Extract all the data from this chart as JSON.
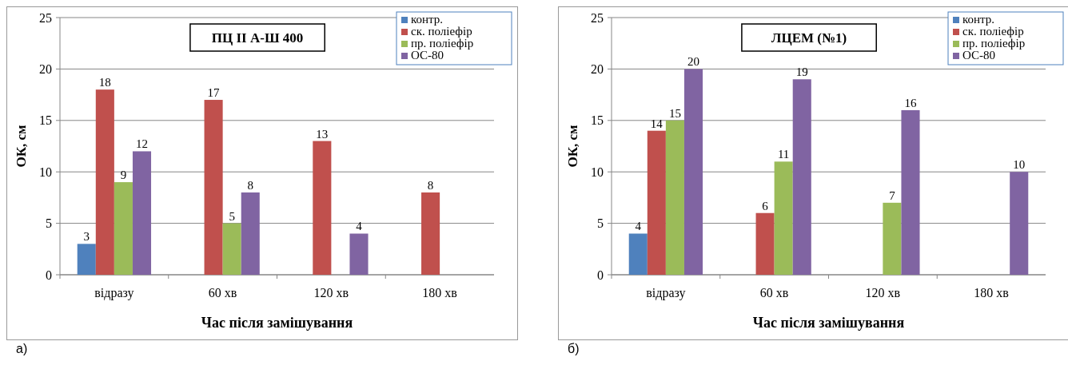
{
  "chart_data": [
    {
      "type": "bar",
      "title": "ПЦ II А-Ш 400",
      "xlabel": "Час після замішування",
      "ylabel": "ОК, см",
      "categories": [
        "відразу",
        "60 хв",
        "120 хв",
        "180 хв"
      ],
      "series": [
        {
          "name": "контр.",
          "color": "#4f81bd",
          "values": [
            3,
            null,
            null,
            null
          ]
        },
        {
          "name": "ск. поліефір",
          "color": "#c0504d",
          "values": [
            18,
            17,
            13,
            8
          ]
        },
        {
          "name": "пр. поліефір",
          "color": "#9bbb59",
          "values": [
            9,
            5,
            null,
            null
          ]
        },
        {
          "name": "ОС-80",
          "color": "#8064a2",
          "values": [
            12,
            8,
            4,
            null
          ]
        }
      ],
      "ylim": [
        0,
        25
      ],
      "yticks": [
        0,
        5,
        10,
        15,
        20,
        25
      ],
      "grid": "y",
      "legend": "top right",
      "data_labels": true,
      "annotations": [
        "а)"
      ]
    },
    {
      "type": "bar",
      "title": "ЛЦЕМ (№1)",
      "xlabel": "Час після замішування",
      "ylabel": "ОК, см",
      "categories": [
        "відразу",
        "60 хв",
        "120 хв",
        "180 хв"
      ],
      "series": [
        {
          "name": "контр.",
          "color": "#4f81bd",
          "values": [
            4,
            null,
            null,
            null
          ]
        },
        {
          "name": "ск. поліефір",
          "color": "#c0504d",
          "values": [
            14,
            6,
            null,
            null
          ]
        },
        {
          "name": "пр. поліефір",
          "color": "#9bbb59",
          "values": [
            15,
            11,
            7,
            null
          ]
        },
        {
          "name": "ОС-80",
          "color": "#8064a2",
          "values": [
            20,
            19,
            16,
            10
          ]
        }
      ],
      "ylim": [
        0,
        25
      ],
      "yticks": [
        0,
        5,
        10,
        15,
        20,
        25
      ],
      "grid": "y",
      "legend": "top right",
      "data_labels": true,
      "annotations": [
        "б)"
      ]
    }
  ]
}
